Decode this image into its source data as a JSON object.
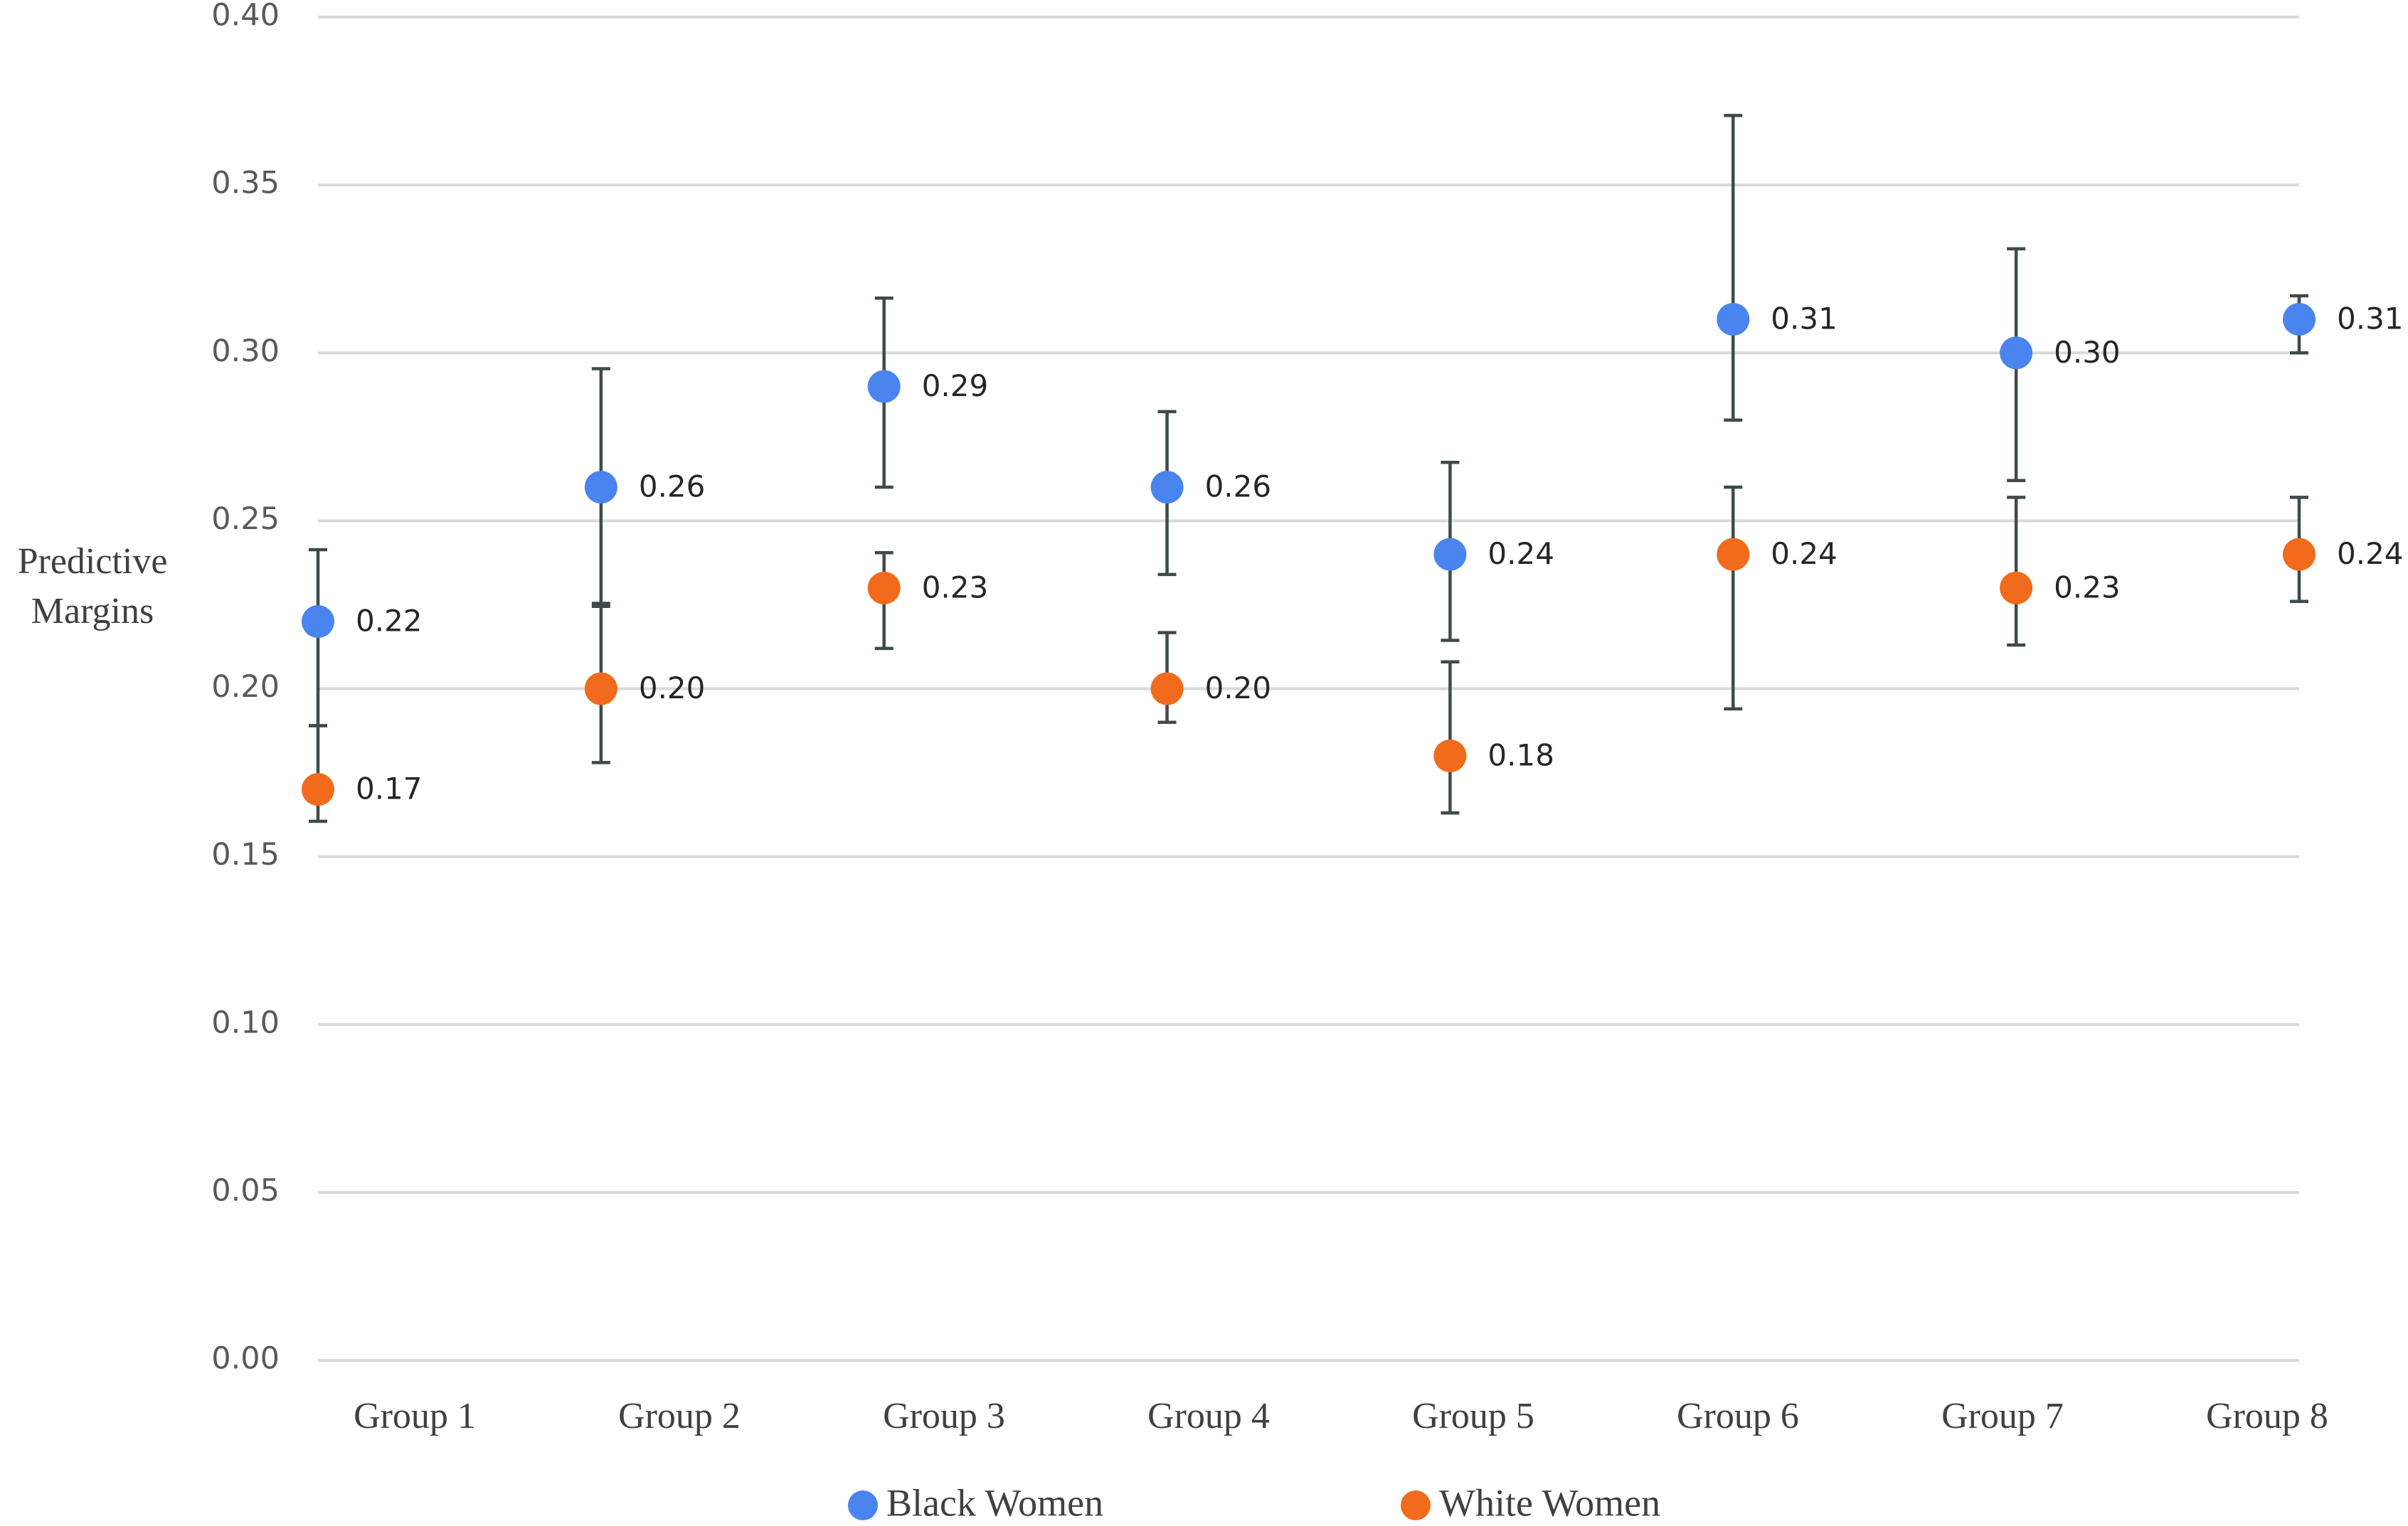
{
  "chart_data": {
    "type": "errorbar",
    "y_label": "Predictive Margins",
    "categories": [
      "Group 1",
      "Group 2",
      "Group 3",
      "Group 4",
      "Group 5",
      "Group 6",
      "Group 7",
      "Group 8"
    ],
    "series": [
      {
        "name": "Black Women",
        "color": "#4a84ee",
        "values": [
          0.22,
          0.26,
          0.29,
          0.26,
          0.24,
          0.31,
          0.3,
          0.31
        ],
        "value_labels": [
          "0.22",
          "0.26",
          "0.29",
          "0.26",
          "0.24",
          "0.31",
          "0.30",
          "0.31"
        ],
        "ci_low": [
          0.189,
          0.2245,
          0.26,
          0.234,
          0.2144,
          0.28,
          0.262,
          0.3
        ],
        "ci_high": [
          0.2414,
          0.2953,
          0.3163,
          0.2825,
          0.2674,
          0.3707,
          0.331,
          0.317
        ]
      },
      {
        "name": "White Women",
        "color": "#f26a1c",
        "values": [
          0.17,
          0.2,
          0.23,
          0.2,
          0.18,
          0.24,
          0.23,
          0.24
        ],
        "value_labels": [
          "0.17",
          "0.20",
          "0.23",
          "0.20",
          "0.18",
          "0.24",
          "0.23",
          "0.24"
        ],
        "ci_low": [
          0.1605,
          0.178,
          0.212,
          0.19,
          0.163,
          0.194,
          0.213,
          0.226
        ],
        "ci_high": [
          0.189,
          0.2254,
          0.2405,
          0.2167,
          0.208,
          0.26,
          0.257,
          0.257
        ]
      }
    ],
    "ylim": [
      0,
      0.4
    ],
    "yticks": [
      {
        "value": 0,
        "label": "0.00"
      },
      {
        "value": 0.05,
        "label": "0.05"
      },
      {
        "value": 0.1,
        "label": "0.10"
      },
      {
        "value": 0.15,
        "label": "0.15"
      },
      {
        "value": 0.2,
        "label": "0.20"
      },
      {
        "value": 0.25,
        "label": "0.25"
      },
      {
        "value": 0.3,
        "label": "0.30"
      },
      {
        "value": 0.35,
        "label": "0.35"
      },
      {
        "value": 0.4,
        "label": "0.40"
      }
    ],
    "grid": true,
    "legend": "bottom"
  }
}
